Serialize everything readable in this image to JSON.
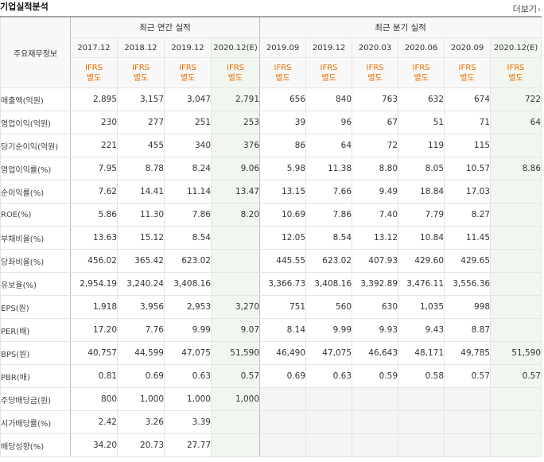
{
  "title": "기업실적분석",
  "more_label": "더보기",
  "header": {
    "corner": "주요재무정보",
    "annual_group": "최근 연간 실적",
    "quarter_group": "최근 분기 실적",
    "periods": [
      "2017.12",
      "2018.12",
      "2019.12",
      "2020.12(E)",
      "2019.09",
      "2019.12",
      "2020.03",
      "2020.06",
      "2020.09",
      "2020.12(E)"
    ],
    "ifrs_top": "IFRS",
    "ifrs_bottom": "별도"
  },
  "rows": [
    {
      "label": "매출액(억원)",
      "values": [
        "2,895",
        "3,157",
        "3,047",
        "2,791",
        "656",
        "840",
        "763",
        "632",
        "674",
        "722"
      ]
    },
    {
      "label": "영업이익(억원)",
      "values": [
        "230",
        "277",
        "251",
        "253",
        "39",
        "96",
        "67",
        "51",
        "71",
        "64"
      ]
    },
    {
      "label": "당기순이익(억원)",
      "values": [
        "221",
        "455",
        "340",
        "376",
        "86",
        "64",
        "72",
        "119",
        "115",
        ""
      ]
    },
    {
      "label": "영업이익률(%)",
      "values": [
        "7.95",
        "8.78",
        "8.24",
        "9.06",
        "5.98",
        "11.38",
        "8.80",
        "8.05",
        "10.57",
        "8.86"
      ]
    },
    {
      "label": "순이익률(%)",
      "values": [
        "7.62",
        "14.41",
        "11.14",
        "13.47",
        "13.15",
        "7.66",
        "9.49",
        "18.84",
        "17.03",
        ""
      ]
    },
    {
      "label": "ROE(%)",
      "values": [
        "5.86",
        "11.30",
        "7.86",
        "8.20",
        "10.69",
        "7.86",
        "7.40",
        "7.79",
        "8.27",
        ""
      ]
    },
    {
      "label": "부채비율(%)",
      "values": [
        "13.63",
        "15.12",
        "8.54",
        "",
        "12.05",
        "8.54",
        "13.12",
        "10.84",
        "11.45",
        ""
      ]
    },
    {
      "label": "당좌비율(%)",
      "values": [
        "456.02",
        "365.42",
        "623.02",
        "",
        "445.55",
        "623.02",
        "407.93",
        "429.60",
        "429.65",
        ""
      ]
    },
    {
      "label": "유보율(%)",
      "values": [
        "2,954.19",
        "3,240.24",
        "3,408.16",
        "",
        "3,366.73",
        "3,408.16",
        "3,392.89",
        "3,476.11",
        "3,556.36",
        ""
      ]
    },
    {
      "label": "EPS(원)",
      "values": [
        "1,918",
        "3,956",
        "2,953",
        "3,270",
        "751",
        "560",
        "630",
        "1,035",
        "998",
        ""
      ]
    },
    {
      "label": "PER(배)",
      "values": [
        "17.20",
        "7.76",
        "9.99",
        "9.07",
        "8.14",
        "9.99",
        "9.93",
        "9.43",
        "8.87",
        ""
      ]
    },
    {
      "label": "BPS(원)",
      "values": [
        "40,757",
        "44,599",
        "47,075",
        "51,590",
        "46,490",
        "47,075",
        "46,643",
        "48,171",
        "49,785",
        "51,590"
      ]
    },
    {
      "label": "PBR(배)",
      "values": [
        "0.81",
        "0.69",
        "0.63",
        "0.57",
        "0.69",
        "0.63",
        "0.59",
        "0.58",
        "0.57",
        "0.57"
      ]
    },
    {
      "label": "주당배당금(원)",
      "values": [
        "800",
        "1,000",
        "1,000",
        "1,000",
        "",
        "",
        "",
        "",
        "",
        ""
      ]
    },
    {
      "label": "시가배당률(%)",
      "values": [
        "2.42",
        "3.26",
        "3.39",
        "",
        "",
        "",
        "",
        "",
        "",
        ""
      ]
    },
    {
      "label": "배당성향(%)",
      "values": [
        "34.20",
        "20.73",
        "27.77",
        "",
        "",
        "",
        "",
        "",
        "",
        ""
      ]
    }
  ]
}
